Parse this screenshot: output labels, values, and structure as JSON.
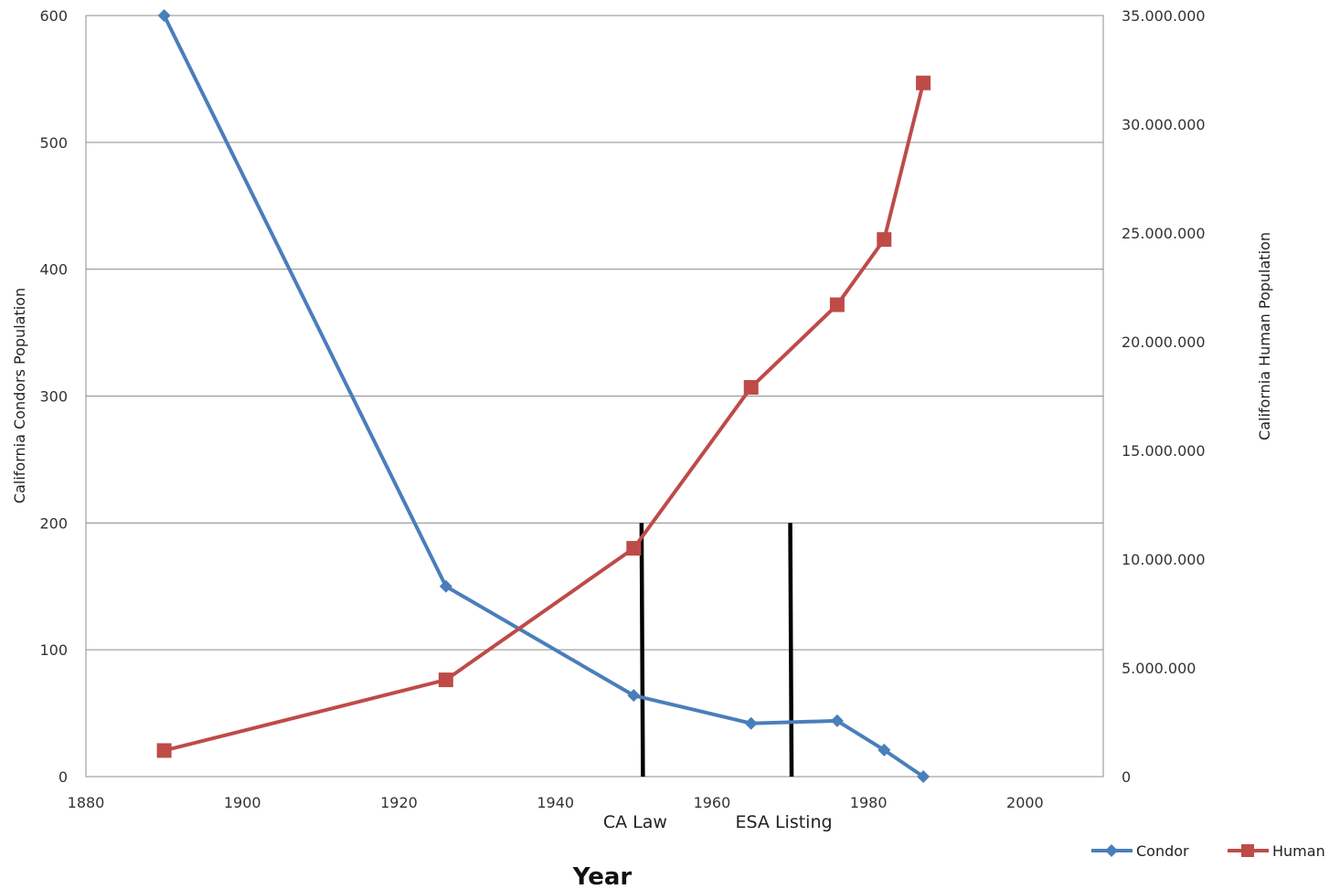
{
  "chart_data": {
    "type": "line",
    "title": "",
    "xlabel": "Year",
    "ylabel": "California Condors Population",
    "y2label": "California Human Population",
    "xlim": [
      1880,
      2010
    ],
    "ylim": [
      0,
      600
    ],
    "y2lim": [
      0,
      35000000
    ],
    "x_ticks": [
      1880,
      1900,
      1920,
      1940,
      1960,
      1980,
      2000
    ],
    "x_tick_labels": [
      "1880",
      "1900",
      "1920",
      "1940",
      "1960",
      "1980",
      "2000"
    ],
    "y_ticks": [
      0,
      100,
      200,
      300,
      400,
      500,
      600
    ],
    "y_tick_labels": [
      "0",
      "100",
      "200",
      "300",
      "400",
      "500",
      "600"
    ],
    "y2_ticks": [
      0,
      5000000,
      10000000,
      15000000,
      20000000,
      25000000,
      30000000,
      35000000
    ],
    "y2_tick_labels": [
      "0",
      "5.000.000",
      "10.000.000",
      "15.000.000",
      "20.000.000",
      "25.000.000",
      "30.000.000",
      "35.000.000"
    ],
    "grid": true,
    "legend_position": "bottom-right",
    "series": [
      {
        "name": "Condor",
        "axis": "left",
        "color": "#4a7ebb",
        "marker": "diamond",
        "x": [
          1890,
          1926,
          1950,
          1965,
          1976,
          1982,
          1987
        ],
        "y": [
          600,
          150,
          64,
          42,
          44,
          21,
          0
        ]
      },
      {
        "name": "Human",
        "axis": "right",
        "color": "#be4b48",
        "marker": "square",
        "x": [
          1890,
          1926,
          1950,
          1965,
          1976,
          1982,
          1987
        ],
        "y": [
          1200000,
          4450000,
          10500000,
          17900000,
          21700000,
          24700000,
          31900000
        ]
      }
    ],
    "annotations": [
      {
        "label": "CA Law",
        "x": 1951,
        "y_top": 200
      },
      {
        "label": "ESA Listing",
        "x": 1970,
        "y_top": 200
      }
    ]
  }
}
